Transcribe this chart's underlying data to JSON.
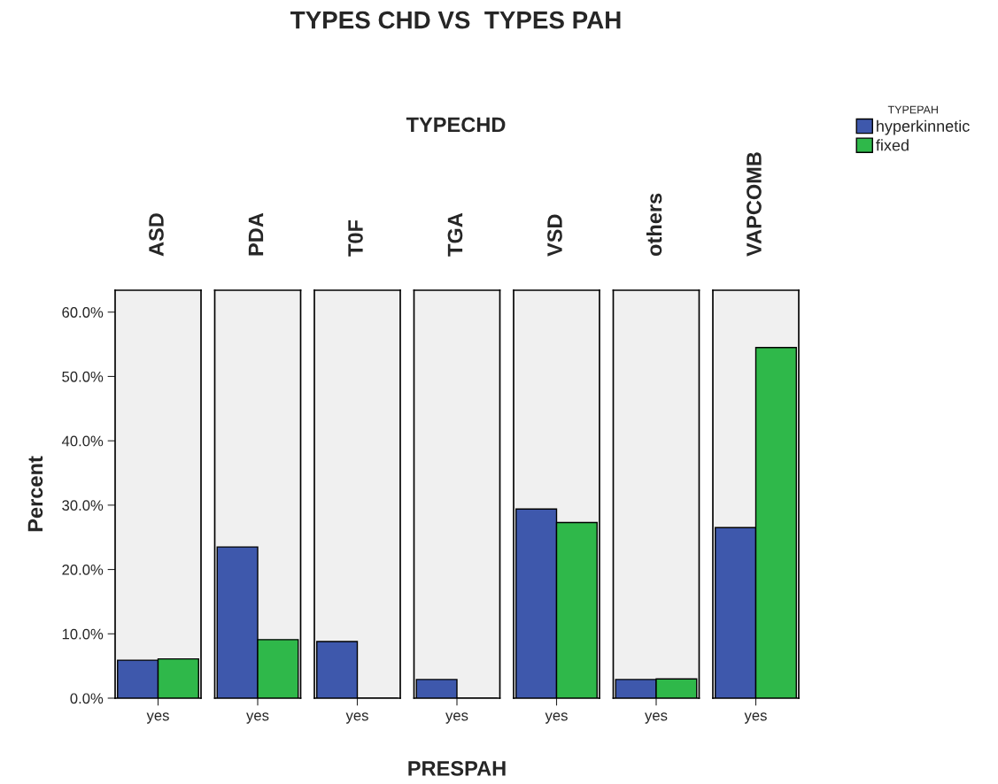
{
  "chart_data": [
    {
      "type": "bar",
      "title": "ASD",
      "ylabel": "Percent",
      "annotations": [
        "TYPES CHD VS  TYPES PAH",
        "TYPECHD"
      ],
      "categories": [
        "yes"
      ],
      "ylim": [
        0,
        63.4
      ],
      "yticks": [
        {
          "value": 0,
          "label": "0.0%"
        },
        {
          "value": 10,
          "label": "10.0%"
        },
        {
          "value": 20,
          "label": "20.0%"
        },
        {
          "value": 30,
          "label": "30.0%"
        },
        {
          "value": 40,
          "label": "40.0%"
        },
        {
          "value": 50,
          "label": "50.0%"
        },
        {
          "value": 60,
          "label": "60.0%"
        }
      ],
      "legend": "right",
      "legend_title": "TYPEPAH",
      "series": [
        {
          "name": "hyperkinnetic",
          "color": "#3e58ac",
          "values": [
            5.9
          ]
        },
        {
          "name": "fixed",
          "color": "#2fb84a",
          "values": [
            6.1
          ]
        }
      ]
    },
    {
      "type": "bar",
      "title": "PDA",
      "categories": [
        "yes"
      ],
      "ylim": [
        0,
        63.4
      ],
      "tick_labels": "x",
      "series": [
        {
          "color": "#3e58ac",
          "values": [
            23.5
          ]
        },
        {
          "color": "#2fb84a",
          "values": [
            9.1
          ]
        }
      ]
    },
    {
      "type": "bar",
      "title": "T0F",
      "categories": [
        "yes"
      ],
      "ylim": [
        0,
        63.4
      ],
      "tick_labels": "x",
      "series": [
        {
          "color": "#3e58ac",
          "values": [
            8.8
          ]
        },
        {
          "color": "#2fb84a",
          "values": [
            0
          ]
        }
      ]
    },
    {
      "type": "bar",
      "title": "TGA",
      "xlabel": "PRESPAH",
      "categories": [
        "yes"
      ],
      "ylim": [
        0,
        63.4
      ],
      "tick_labels": "x",
      "series": [
        {
          "color": "#3e58ac",
          "values": [
            2.9
          ]
        },
        {
          "color": "#2fb84a",
          "values": [
            0
          ]
        }
      ]
    },
    {
      "type": "bar",
      "title": "VSD",
      "categories": [
        "yes"
      ],
      "ylim": [
        0,
        63.4
      ],
      "tick_labels": "x",
      "series": [
        {
          "color": "#3e58ac",
          "values": [
            29.4
          ]
        },
        {
          "color": "#2fb84a",
          "values": [
            27.3
          ]
        }
      ]
    },
    {
      "type": "bar",
      "title": "others",
      "categories": [
        "yes"
      ],
      "ylim": [
        0,
        63.4
      ],
      "tick_labels": "x",
      "series": [
        {
          "color": "#3e58ac",
          "values": [
            2.9
          ]
        },
        {
          "color": "#2fb84a",
          "values": [
            3.0
          ]
        }
      ]
    },
    {
      "type": "bar",
      "title": "VAPCOMB",
      "categories": [
        "yes"
      ],
      "ylim": [
        0,
        63.4
      ],
      "tick_labels": "x",
      "series": [
        {
          "color": "#3e58ac",
          "values": [
            26.5
          ]
        },
        {
          "color": "#2fb84a",
          "values": [
            54.5
          ]
        }
      ]
    }
  ]
}
